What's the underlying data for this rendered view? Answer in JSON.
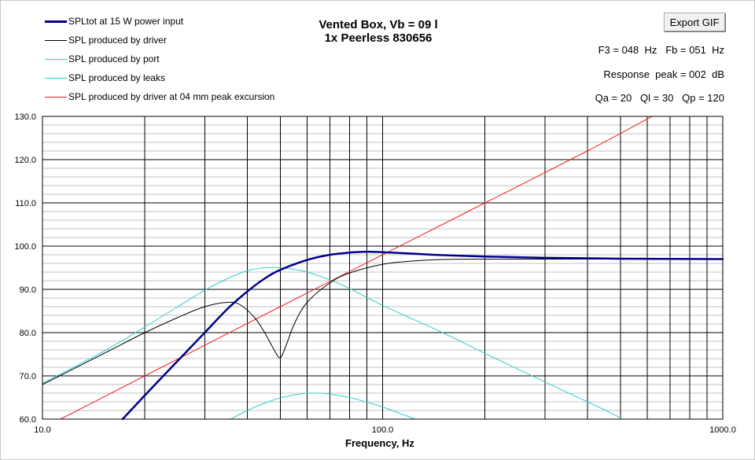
{
  "chart_data": {
    "type": "line",
    "title": "Vented Box, Vb = 09 l",
    "subtitle": "1x Peerless 830656",
    "xlabel": "Frequency, Hz",
    "ylabel": "",
    "xscale": "log",
    "xlim": [
      10,
      1000
    ],
    "ylim": [
      60,
      130
    ],
    "xticks": [
      "10.0",
      "100.0",
      "1000.0"
    ],
    "yticks": [
      "60.0",
      "70.0",
      "80.0",
      "90.0",
      "100.0",
      "110.0",
      "120.0",
      "130.0"
    ],
    "grid": true,
    "legend_position": "top-left",
    "series": [
      {
        "name": "SPLtot at 15 W power input",
        "color": "#00008b",
        "points": [
          [
            17.2,
            60
          ],
          [
            20,
            65.5
          ],
          [
            25,
            73.5
          ],
          [
            30,
            80
          ],
          [
            35,
            85.5
          ],
          [
            40,
            89.5
          ],
          [
            45,
            92.5
          ],
          [
            50,
            94.5
          ],
          [
            60,
            96.8
          ],
          [
            70,
            98
          ],
          [
            80,
            98.5
          ],
          [
            90,
            98.7
          ],
          [
            100,
            98.6
          ],
          [
            120,
            98.3
          ],
          [
            150,
            97.9
          ],
          [
            200,
            97.6
          ],
          [
            300,
            97.3
          ],
          [
            500,
            97.1
          ],
          [
            1000,
            97
          ]
        ]
      },
      {
        "name": "SPL produced by driver",
        "color": "#000000",
        "points": [
          [
            10,
            68
          ],
          [
            15,
            75
          ],
          [
            20,
            80
          ],
          [
            25,
            83.5
          ],
          [
            30,
            86
          ],
          [
            35,
            87
          ],
          [
            38,
            86.5
          ],
          [
            42,
            83.5
          ],
          [
            45,
            80
          ],
          [
            48,
            76
          ],
          [
            50,
            74.2
          ],
          [
            52,
            77
          ],
          [
            55,
            82
          ],
          [
            60,
            87
          ],
          [
            70,
            91.5
          ],
          [
            80,
            93.8
          ],
          [
            100,
            95.8
          ],
          [
            120,
            96.5
          ],
          [
            150,
            96.9
          ],
          [
            200,
            97
          ],
          [
            500,
            97
          ],
          [
            1000,
            97
          ]
        ]
      },
      {
        "name": "SPL produced by port",
        "color": "#33cccc",
        "points": [
          [
            10,
            68.3
          ],
          [
            15,
            75.5
          ],
          [
            20,
            81.3
          ],
          [
            25,
            86
          ],
          [
            30,
            89.8
          ],
          [
            35,
            92.5
          ],
          [
            40,
            94.3
          ],
          [
            45,
            95
          ],
          [
            50,
            95
          ],
          [
            55,
            94.6
          ],
          [
            60,
            94
          ],
          [
            70,
            92.2
          ],
          [
            80,
            90.2
          ],
          [
            100,
            86.3
          ],
          [
            150,
            80
          ],
          [
            200,
            75.2
          ],
          [
            300,
            68.6
          ],
          [
            426,
            63
          ],
          [
            500,
            60.3
          ]
        ]
      },
      {
        "name": "SPL produced by leaks",
        "color": "#33cccc",
        "points": [
          [
            35.8,
            60
          ],
          [
            40,
            62
          ],
          [
            45,
            63.7
          ],
          [
            50,
            64.9
          ],
          [
            55,
            65.6
          ],
          [
            60,
            66
          ],
          [
            65,
            66
          ],
          [
            70,
            65.8
          ],
          [
            80,
            65
          ],
          [
            90,
            63.9
          ],
          [
            100,
            62.8
          ],
          [
            120,
            60.5
          ],
          [
            125,
            60
          ]
        ]
      },
      {
        "name": "SPL produced by driver at 04 mm peak excursion",
        "color": "#ee2222",
        "points": [
          [
            11.3,
            60
          ],
          [
            20,
            70
          ],
          [
            50,
            86
          ],
          [
            100,
            98
          ],
          [
            200,
            110
          ],
          [
            400,
            122
          ],
          [
            620,
            130
          ]
        ]
      }
    ]
  },
  "ui": {
    "export_button": "Export GIF",
    "f3_fb": "F3 = 048  Hz   Fb = 051  Hz",
    "response_peak": "Response  peak = 002  dB",
    "q_values": "Qa = 20   Ql = 30   Qp = 120"
  }
}
